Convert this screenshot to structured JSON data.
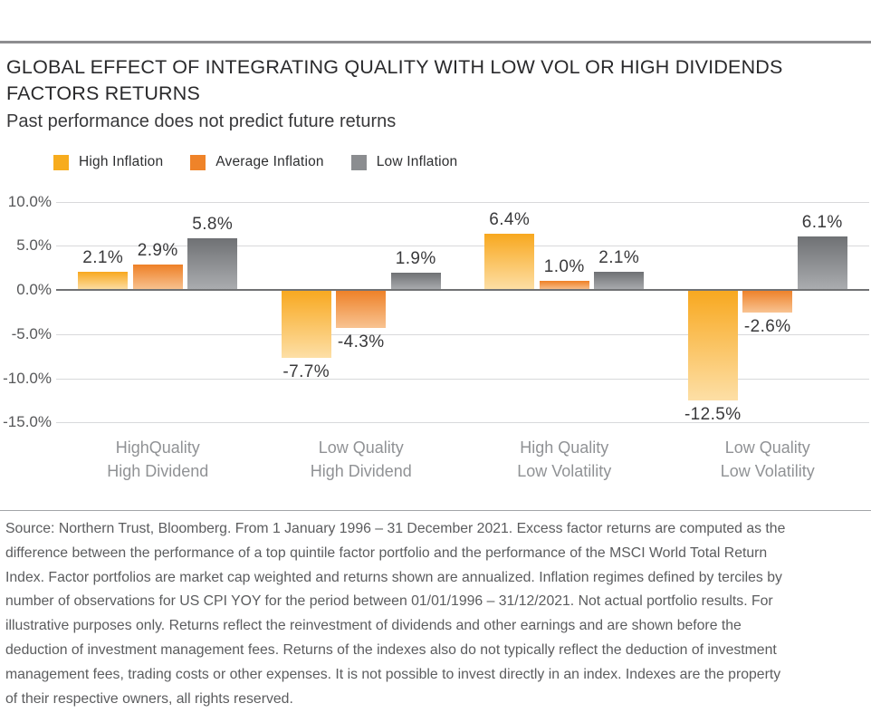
{
  "header": {
    "title_lines": [
      "GLOBAL EFFECT OF INTEGRATING QUALITY WITH LOW VOL OR HIGH DIVIDENDS",
      "FACTORS RETURNS"
    ],
    "subtitle": "Past performance does not predict future returns"
  },
  "legend": [
    {
      "label": "High Inflation",
      "color": "#F7AC1E"
    },
    {
      "label": "Average Inflation",
      "color": "#EF8329"
    },
    {
      "label": "Low Inflation",
      "color": "#8B8D90"
    }
  ],
  "chart_data": {
    "type": "bar",
    "title": "Global effect of integrating quality with low vol or high dividends factors returns",
    "categories": [
      [
        "HighQuality",
        "High Dividend"
      ],
      [
        "Low Quality",
        "High Dividend"
      ],
      [
        "High Quality",
        "Low Volatility"
      ],
      [
        "Low Quality",
        "Low Volatility"
      ]
    ],
    "series": [
      {
        "name": "High Inflation",
        "values": [
          2.1,
          -7.7,
          6.4,
          -12.5
        ],
        "color_top": "#F8A81F",
        "color_bottom": "#FDDFA6"
      },
      {
        "name": "Average Inflation",
        "values": [
          2.9,
          -4.3,
          1.0,
          -2.6
        ],
        "color_top": "#EE8026",
        "color_bottom": "#F8C392"
      },
      {
        "name": "Low Inflation",
        "values": [
          5.8,
          1.9,
          2.1,
          6.1
        ],
        "color_top": "#6F7174",
        "color_bottom": "#ABADB0"
      }
    ],
    "value_labels": [
      [
        "2.1%",
        "-7.7%",
        "6.4%",
        "-12.5%"
      ],
      [
        "2.9%",
        "-4.3%",
        "1.0%",
        "-2.6%"
      ],
      [
        "5.8%",
        "1.9%",
        "2.1%",
        "6.1%"
      ]
    ],
    "y_ticks": [
      {
        "label": "10.0%",
        "value": 10
      },
      {
        "label": "5.0%",
        "value": 5
      },
      {
        "label": "0.0%",
        "value": 0
      },
      {
        "label": "-5.0%",
        "value": -5
      },
      {
        "label": "-10.0%",
        "value": -10
      },
      {
        "label": "-15.0%",
        "value": -15
      }
    ],
    "ylim": [
      -15,
      10
    ],
    "grid": true,
    "legend_position": "top-left",
    "colors": {
      "gridline": "#d8d9db",
      "zero_line": "#717274",
      "axis_text": "#57585a",
      "category_text": "#909295",
      "value_text": "#39393b"
    }
  },
  "footnote": {
    "lines": [
      "Source: Northern Trust, Bloomberg. From 1 January 1996 – 31 December 2021. Excess factor returns are computed as the",
      "difference between the performance of a top quintile factor portfolio and the performance of the MSCI World Total Return",
      "Index. Factor portfolios are market cap weighted and returns shown are annualized. Inflation regimes defined by terciles by",
      "number of observations for US CPI YOY for the period between 01/01/1996 – 31/12/2021. Not actual portfolio results. For",
      "illustrative purposes only. Returns reflect the reinvestment of dividends and other earnings and are shown before the",
      "deduction of investment management fees. Returns of the indexes also do not typically reflect the deduction of investment",
      "management fees, trading costs or other expenses. It is not possible to invest directly in an index. Indexes are the property",
      "of their respective owners, all rights reserved."
    ]
  }
}
